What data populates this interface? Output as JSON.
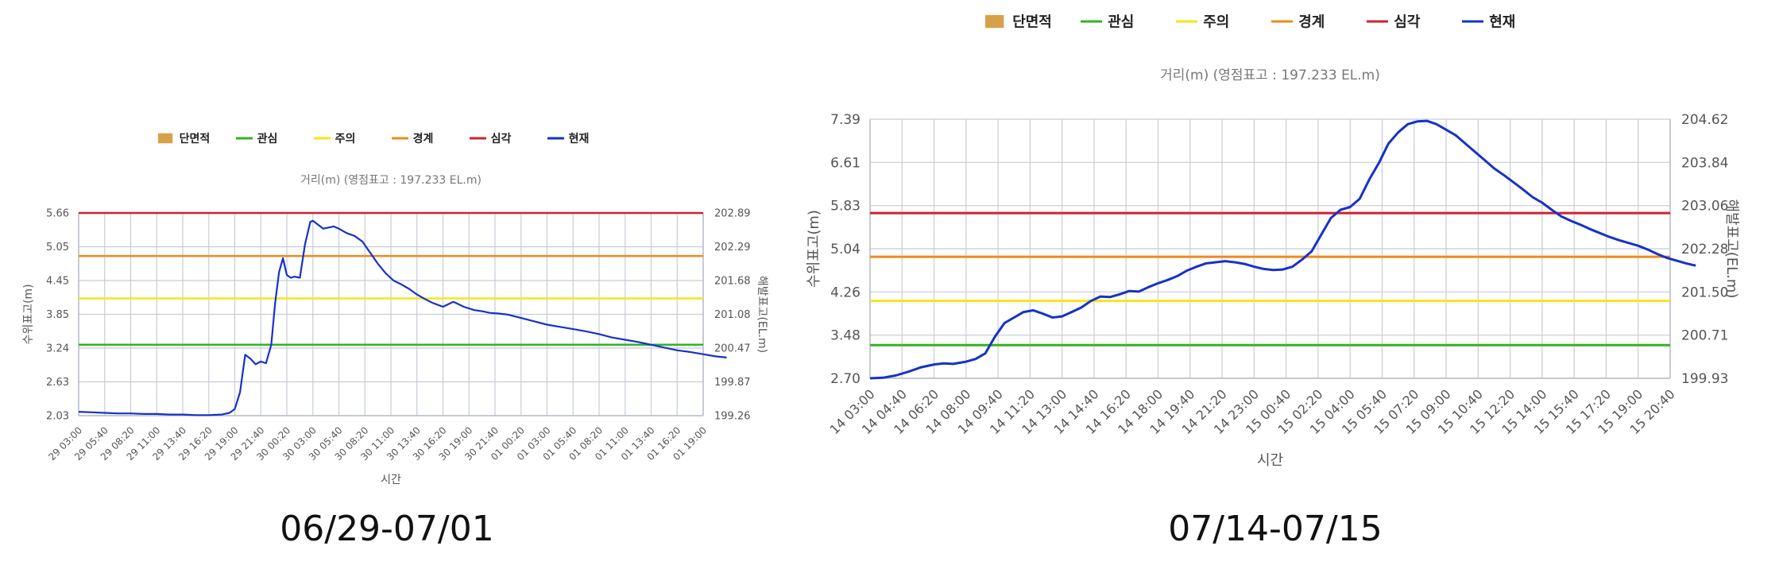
{
  "chart_data": [
    {
      "type": "line",
      "caption": "06/29-07/01",
      "title": "거리(m) (영점표고 : 197.233 EL.m)",
      "xlabel": "시간",
      "ylabel": "수위표고(m)",
      "ylabel_right": "해발표고(EL.m)",
      "legend": [
        {
          "name": "단면적",
          "color": "#d9a04a",
          "shape": "box"
        },
        {
          "name": "관심",
          "color": "#33b322",
          "shape": "line"
        },
        {
          "name": "주의",
          "color": "#f5e51b",
          "shape": "line"
        },
        {
          "name": "경계",
          "color": "#f08a1c",
          "shape": "line"
        },
        {
          "name": "심각",
          "color": "#d22030",
          "shape": "line"
        },
        {
          "name": "현재",
          "color": "#1632c8",
          "shape": "line"
        }
      ],
      "legend_position": "top-center",
      "grid": true,
      "ylim": [
        2.03,
        5.66
      ],
      "yticks_left": [
        "5.66",
        "5.05",
        "4.45",
        "3.85",
        "3.24",
        "2.63",
        "2.03"
      ],
      "yticks_right": [
        "202.89",
        "202.29",
        "201.68",
        "201.08",
        "200.47",
        "199.87",
        "199.26"
      ],
      "xticks": [
        "29 03:00",
        "29 05:40",
        "29 08:20",
        "29 11:00",
        "29 13:40",
        "29 16:20",
        "29 19:00",
        "29 21:40",
        "30 00:20",
        "30 03:00",
        "30 05:40",
        "30 08:20",
        "30 11:00",
        "30 13:40",
        "30 16:20",
        "30 19:00",
        "30 21:40",
        "01 00:20",
        "01 03:00",
        "01 05:40",
        "01 08:20",
        "01 11:00",
        "01 13:40",
        "01 16:20",
        "01 19:00"
      ],
      "thresholds": [
        {
          "name": "관심",
          "value": 3.3
        },
        {
          "name": "주의",
          "value": 4.13
        },
        {
          "name": "경계",
          "value": 4.89
        },
        {
          "name": "심각",
          "value": 5.66
        }
      ],
      "series": [
        {
          "name": "현재",
          "x": [
            0,
            0.5,
            1,
            1.5,
            2,
            2.5,
            3,
            3.5,
            4,
            4.5,
            5,
            5.5,
            5.8,
            6.0,
            6.2,
            6.4,
            6.6,
            6.8,
            7.0,
            7.2,
            7.4,
            7.55,
            7.7,
            7.85,
            8.0,
            8.15,
            8.3,
            8.5,
            8.7,
            8.9,
            9.0,
            9.2,
            9.4,
            9.6,
            9.8,
            10.0,
            10.3,
            10.6,
            10.9,
            11.2,
            11.5,
            11.8,
            12.1,
            12.4,
            12.7,
            13.0,
            13.3,
            13.6,
            14.0,
            14.4,
            14.8,
            15.2,
            15.5,
            15.8,
            16.1,
            16.5,
            17.0,
            17.5,
            18.0,
            18.5,
            19.0,
            19.5,
            20.0,
            20.5,
            21.0,
            21.5,
            22.0,
            22.5,
            23.0,
            23.5,
            24.0,
            24.5,
            24.9
          ],
          "y": [
            2.1,
            2.09,
            2.08,
            2.07,
            2.07,
            2.06,
            2.06,
            2.05,
            2.05,
            2.04,
            2.04,
            2.05,
            2.08,
            2.15,
            2.45,
            3.12,
            3.05,
            2.95,
            3.0,
            2.97,
            3.3,
            4.05,
            4.6,
            4.85,
            4.55,
            4.5,
            4.52,
            4.5,
            5.1,
            5.5,
            5.52,
            5.45,
            5.38,
            5.4,
            5.42,
            5.38,
            5.3,
            5.25,
            5.15,
            4.95,
            4.75,
            4.58,
            4.45,
            4.38,
            4.3,
            4.2,
            4.12,
            4.05,
            3.98,
            4.07,
            3.98,
            3.92,
            3.9,
            3.87,
            3.86,
            3.84,
            3.78,
            3.72,
            3.66,
            3.62,
            3.58,
            3.54,
            3.49,
            3.43,
            3.39,
            3.35,
            3.3,
            3.25,
            3.2,
            3.17,
            3.13,
            3.09,
            3.07
          ]
        }
      ]
    },
    {
      "type": "line",
      "caption": "07/14-07/15",
      "title": "거리(m) (영점표고 : 197.233 EL.m)",
      "xlabel": "시간",
      "ylabel": "수위표고(m)",
      "ylabel_right": "해발표고(EL.m)",
      "legend": [
        {
          "name": "단면적",
          "color": "#d9a04a",
          "shape": "box"
        },
        {
          "name": "관심",
          "color": "#33b322",
          "shape": "line"
        },
        {
          "name": "주의",
          "color": "#f5e51b",
          "shape": "line"
        },
        {
          "name": "경계",
          "color": "#f08a1c",
          "shape": "line"
        },
        {
          "name": "심각",
          "color": "#d22030",
          "shape": "line"
        },
        {
          "name": "현재",
          "color": "#1632c8",
          "shape": "line"
        }
      ],
      "legend_position": "top-center",
      "grid": true,
      "ylim": [
        2.7,
        7.39
      ],
      "yticks_left": [
        "7.39",
        "6.61",
        "5.83",
        "5.04",
        "4.26",
        "3.48",
        "2.70"
      ],
      "yticks_right": [
        "204.62",
        "203.84",
        "203.06",
        "202.28",
        "201.50",
        "200.71",
        "199.93"
      ],
      "xticks": [
        "14 03:00",
        "14 04:40",
        "14 06:20",
        "14 08:00",
        "14 09:40",
        "14 11:20",
        "14 13:00",
        "14 14:40",
        "14 16:20",
        "14 18:00",
        "14 19:40",
        "14 21:20",
        "14 23:00",
        "15 00:40",
        "15 02:20",
        "15 04:00",
        "15 05:40",
        "15 07:20",
        "15 09:00",
        "15 10:40",
        "15 12:20",
        "15 14:00",
        "15 15:40",
        "15 17:20",
        "15 19:00",
        "15 20:40"
      ],
      "thresholds": [
        {
          "name": "관심",
          "value": 3.3
        },
        {
          "name": "주의",
          "value": 4.1
        },
        {
          "name": "경계",
          "value": 4.9
        },
        {
          "name": "심각",
          "value": 5.69
        }
      ],
      "series": [
        {
          "name": "현재",
          "x": [
            0,
            0.4,
            0.8,
            1.2,
            1.6,
            2.0,
            2.3,
            2.6,
            3.0,
            3.3,
            3.6,
            3.9,
            4.2,
            4.5,
            4.8,
            5.1,
            5.4,
            5.7,
            6.0,
            6.3,
            6.6,
            6.9,
            7.2,
            7.5,
            7.8,
            8.1,
            8.4,
            8.7,
            9.0,
            9.3,
            9.6,
            9.9,
            10.2,
            10.5,
            10.8,
            11.1,
            11.4,
            11.7,
            12.0,
            12.3,
            12.6,
            12.9,
            13.2,
            13.5,
            13.8,
            14.1,
            14.4,
            14.7,
            15.0,
            15.3,
            15.6,
            15.9,
            16.2,
            16.5,
            16.8,
            17.1,
            17.4,
            17.7,
            18.0,
            18.3,
            18.6,
            18.9,
            19.2,
            19.5,
            19.8,
            20.1,
            20.4,
            20.7,
            21.0,
            21.3,
            21.6,
            21.9,
            22.2,
            22.5,
            22.8,
            23.1,
            23.4,
            23.7,
            24.0,
            24.3,
            24.6,
            24.9,
            25.2,
            25.5,
            25.8
          ],
          "y": [
            2.7,
            2.71,
            2.75,
            2.82,
            2.9,
            2.95,
            2.97,
            2.96,
            3.0,
            3.05,
            3.15,
            3.45,
            3.7,
            3.8,
            3.9,
            3.93,
            3.87,
            3.8,
            3.82,
            3.9,
            3.98,
            4.1,
            4.18,
            4.17,
            4.22,
            4.28,
            4.27,
            4.35,
            4.42,
            4.48,
            4.55,
            4.65,
            4.72,
            4.78,
            4.8,
            4.82,
            4.8,
            4.77,
            4.72,
            4.68,
            4.66,
            4.67,
            4.72,
            4.85,
            5.0,
            5.3,
            5.6,
            5.75,
            5.8,
            5.95,
            6.3,
            6.6,
            6.95,
            7.15,
            7.3,
            7.35,
            7.36,
            7.3,
            7.2,
            7.1,
            6.95,
            6.8,
            6.65,
            6.5,
            6.38,
            6.25,
            6.12,
            5.98,
            5.88,
            5.75,
            5.63,
            5.55,
            5.48,
            5.4,
            5.33,
            5.26,
            5.2,
            5.15,
            5.1,
            5.03,
            4.95,
            4.88,
            4.83,
            4.78,
            4.74
          ]
        }
      ]
    }
  ]
}
